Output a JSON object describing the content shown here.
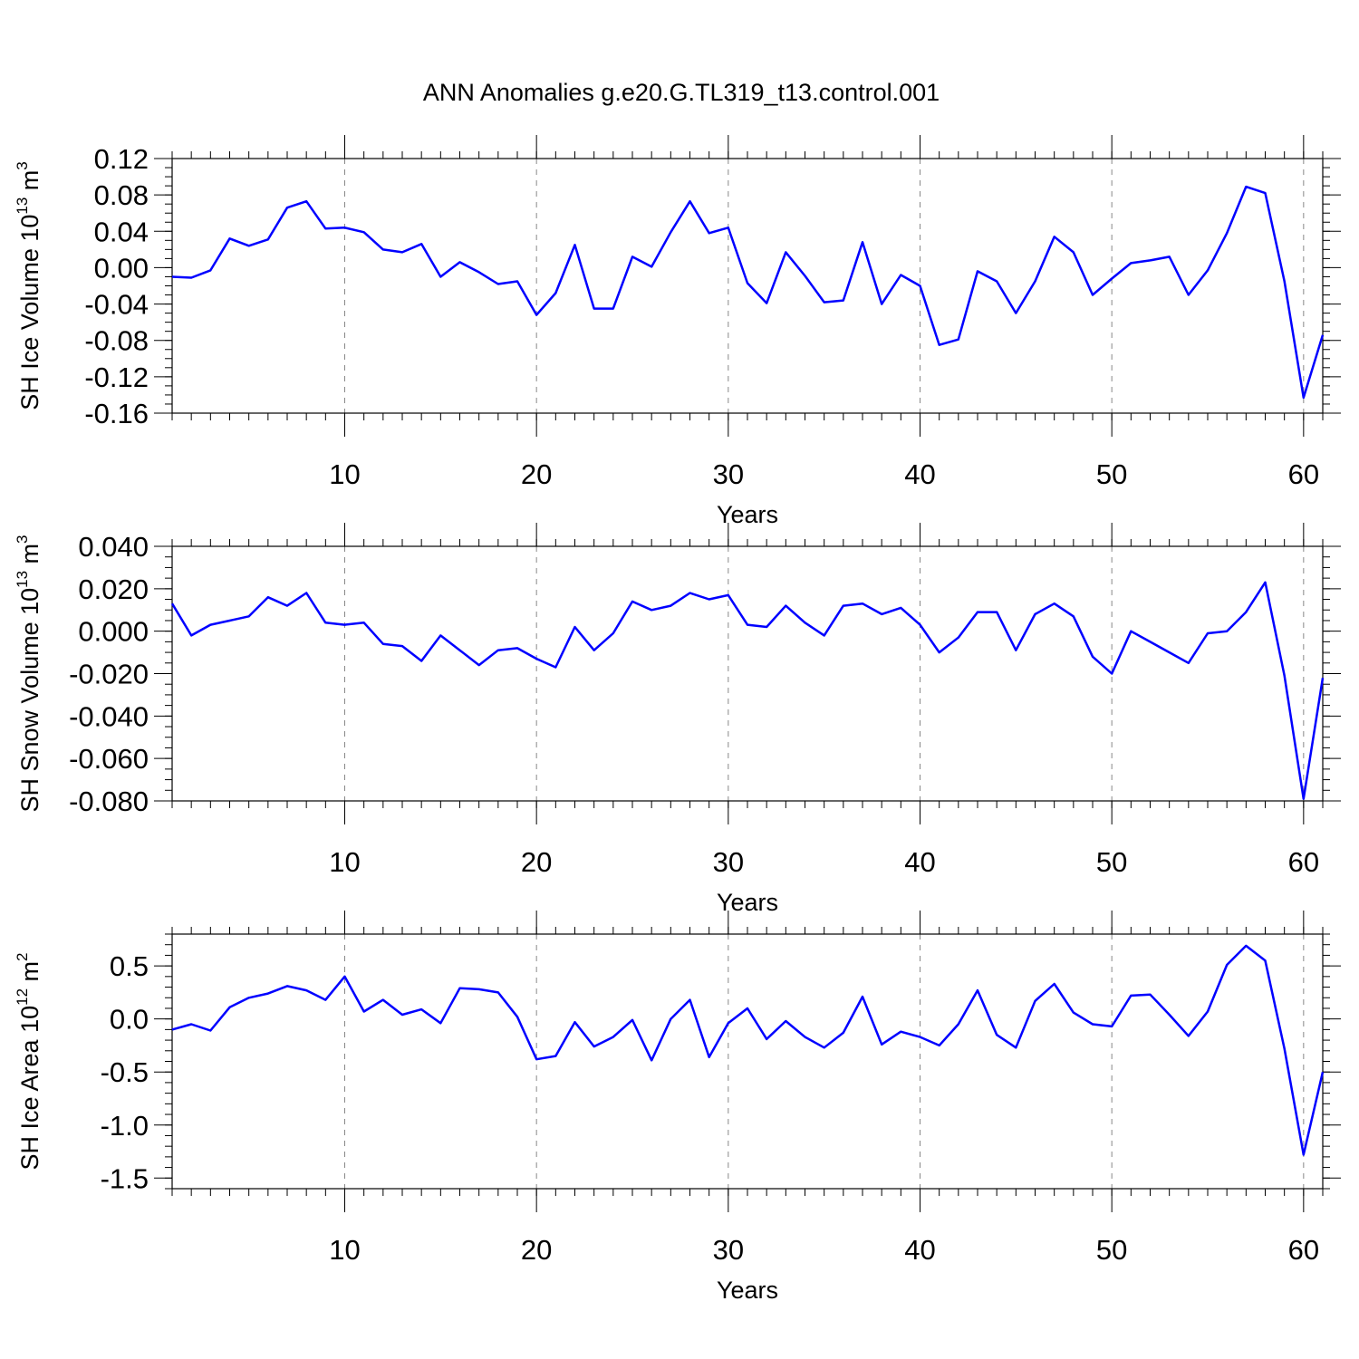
{
  "figure_title": "ANN Anomalies g.e20.G.TL319_t13.control.001",
  "colors": {
    "line": "#0000ff",
    "grid": "#888888",
    "frame": "#000000"
  },
  "chart_data": [
    {
      "type": "line",
      "title": "",
      "xlabel": "Years",
      "ylabel_parts": [
        "SH Ice Volume 10",
        "13",
        " m",
        "3"
      ],
      "xlim": [
        1,
        61
      ],
      "ylim": [
        -0.16,
        0.12
      ],
      "xticks": [
        10,
        20,
        30,
        40,
        50,
        60
      ],
      "xtick_labels": [
        "10",
        "20",
        "30",
        "40",
        "50",
        "60"
      ],
      "yticks": [
        0.12,
        0.08,
        0.04,
        0.0,
        -0.04,
        -0.08,
        -0.12,
        -0.16
      ],
      "ytick_labels": [
        "0.12",
        "0.08",
        "0.04",
        "0.00",
        "-0.04",
        "-0.08",
        "-0.12",
        "-0.16"
      ],
      "minor_y_step": 0.01,
      "grid": "vertical dashed at major x ticks",
      "series": [
        {
          "x": [
            1,
            2,
            3,
            4,
            5,
            6,
            7,
            8,
            9,
            10,
            11,
            12,
            13,
            14,
            15,
            16,
            17,
            18,
            19,
            20,
            21,
            22,
            23,
            24,
            25,
            26,
            27,
            28,
            29,
            30,
            31,
            32,
            33,
            34,
            35,
            36,
            37,
            38,
            39,
            40,
            41,
            42,
            43,
            44,
            45,
            46,
            47,
            48,
            49,
            50,
            51,
            52,
            53,
            54,
            55,
            56,
            57,
            58,
            59,
            60,
            61
          ],
          "values": [
            -0.01,
            -0.011,
            -0.003,
            0.032,
            0.024,
            0.031,
            0.066,
            0.073,
            0.043,
            0.044,
            0.039,
            0.02,
            0.017,
            0.026,
            -0.01,
            0.006,
            -0.005,
            -0.018,
            -0.015,
            -0.052,
            -0.028,
            0.025,
            -0.045,
            -0.045,
            0.012,
            0.001,
            0.039,
            0.073,
            0.038,
            0.044,
            -0.017,
            -0.039,
            0.017,
            -0.009,
            -0.038,
            -0.036,
            0.028,
            -0.04,
            -0.008,
            -0.02,
            -0.085,
            -0.079,
            -0.004,
            -0.015,
            -0.05,
            -0.015,
            0.034,
            0.017,
            -0.03,
            -0.012,
            0.005,
            0.008,
            0.012,
            -0.03,
            -0.003,
            0.038,
            0.089,
            0.082,
            -0.015,
            -0.143,
            -0.074
          ]
        }
      ]
    },
    {
      "type": "line",
      "title": "",
      "xlabel": "Years",
      "ylabel_parts": [
        "SH Snow Volume 10",
        "13",
        " m",
        "3"
      ],
      "xlim": [
        1,
        61
      ],
      "ylim": [
        -0.08,
        0.04
      ],
      "xticks": [
        10,
        20,
        30,
        40,
        50,
        60
      ],
      "xtick_labels": [
        "10",
        "20",
        "30",
        "40",
        "50",
        "60"
      ],
      "yticks": [
        0.04,
        0.02,
        0.0,
        -0.02,
        -0.04,
        -0.06,
        -0.08
      ],
      "ytick_labels": [
        "0.040",
        "0.020",
        "0.000",
        "-0.020",
        "-0.040",
        "-0.060",
        "-0.080"
      ],
      "minor_y_step": 0.005,
      "grid": "vertical dashed at major x ticks",
      "series": [
        {
          "x": [
            1,
            2,
            3,
            4,
            5,
            6,
            7,
            8,
            9,
            10,
            11,
            12,
            13,
            14,
            15,
            16,
            17,
            18,
            19,
            20,
            21,
            22,
            23,
            24,
            25,
            26,
            27,
            28,
            29,
            30,
            31,
            32,
            33,
            34,
            35,
            36,
            37,
            38,
            39,
            40,
            41,
            42,
            43,
            44,
            45,
            46,
            47,
            48,
            49,
            50,
            51,
            52,
            53,
            54,
            55,
            56,
            57,
            58,
            59,
            60,
            61
          ],
          "values": [
            0.013,
            -0.002,
            0.003,
            0.005,
            0.007,
            0.016,
            0.012,
            0.018,
            0.004,
            0.003,
            0.004,
            -0.006,
            -0.007,
            -0.014,
            -0.002,
            -0.009,
            -0.016,
            -0.009,
            -0.008,
            -0.013,
            -0.017,
            0.002,
            -0.009,
            -0.001,
            0.014,
            0.01,
            0.012,
            0.018,
            0.015,
            0.017,
            0.003,
            0.002,
            0.012,
            0.004,
            -0.002,
            0.012,
            0.013,
            0.008,
            0.011,
            0.003,
            -0.01,
            -0.003,
            0.009,
            0.009,
            -0.009,
            0.008,
            0.013,
            0.007,
            -0.012,
            -0.02,
            0.0,
            -0.005,
            -0.01,
            -0.015,
            -0.001,
            0.0,
            0.009,
            0.023,
            -0.021,
            -0.079,
            -0.022
          ]
        }
      ]
    },
    {
      "type": "line",
      "title": "",
      "xlabel": "Years",
      "ylabel_parts": [
        "SH Ice Area 10",
        "12",
        " m",
        "2"
      ],
      "xlim": [
        1,
        61
      ],
      "ylim": [
        -1.6,
        0.8
      ],
      "xticks": [
        10,
        20,
        30,
        40,
        50,
        60
      ],
      "xtick_labels": [
        "10",
        "20",
        "30",
        "40",
        "50",
        "60"
      ],
      "yticks": [
        0.5,
        0.0,
        -0.5,
        -1.0,
        -1.5
      ],
      "ytick_labels": [
        "0.5",
        "0.0",
        "-0.5",
        "-1.0",
        "-1.5"
      ],
      "minor_y_step": 0.1,
      "grid": "vertical dashed at major x ticks",
      "series": [
        {
          "x": [
            1,
            2,
            3,
            4,
            5,
            6,
            7,
            8,
            9,
            10,
            11,
            12,
            13,
            14,
            15,
            16,
            17,
            18,
            19,
            20,
            21,
            22,
            23,
            24,
            25,
            26,
            27,
            28,
            29,
            30,
            31,
            32,
            33,
            34,
            35,
            36,
            37,
            38,
            39,
            40,
            41,
            42,
            43,
            44,
            45,
            46,
            47,
            48,
            49,
            50,
            51,
            52,
            53,
            54,
            55,
            56,
            57,
            58,
            59,
            60,
            61
          ],
          "values": [
            -0.1,
            -0.05,
            -0.11,
            0.11,
            0.2,
            0.24,
            0.31,
            0.27,
            0.18,
            0.4,
            0.07,
            0.18,
            0.04,
            0.09,
            -0.04,
            0.29,
            0.28,
            0.25,
            0.02,
            -0.38,
            -0.35,
            -0.03,
            -0.26,
            -0.17,
            -0.01,
            -0.39,
            0.0,
            0.18,
            -0.36,
            -0.04,
            0.1,
            -0.19,
            -0.02,
            -0.17,
            -0.27,
            -0.13,
            0.21,
            -0.24,
            -0.12,
            -0.17,
            -0.25,
            -0.05,
            0.27,
            -0.15,
            -0.27,
            0.17,
            0.33,
            0.06,
            -0.05,
            -0.07,
            0.22,
            0.23,
            0.04,
            -0.16,
            0.07,
            0.51,
            0.69,
            0.55,
            -0.28,
            -1.28,
            -0.5
          ]
        }
      ]
    }
  ]
}
